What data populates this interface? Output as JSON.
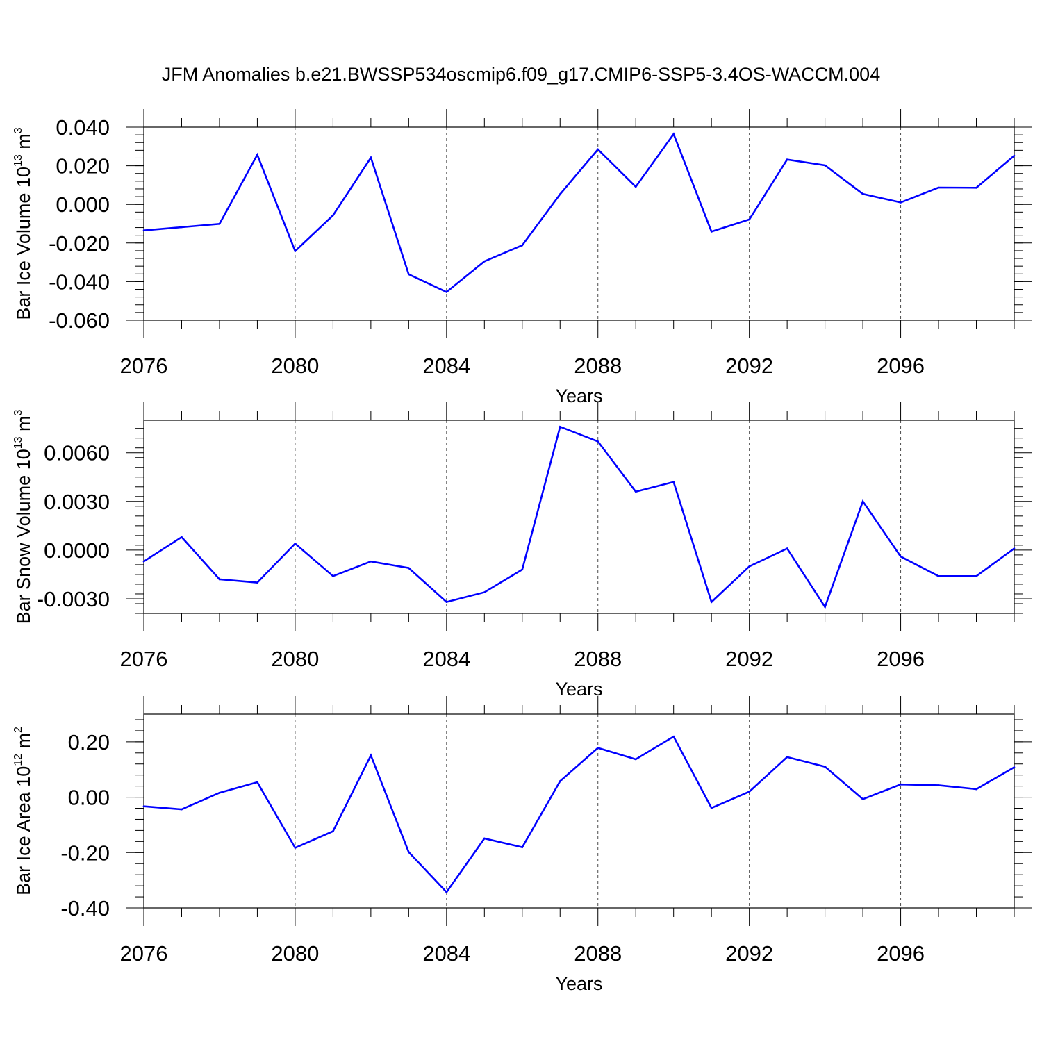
{
  "title": "JFM Anomalies b.e21.BWSSP534oscmip6.f09_g17.CMIP6-SSP5-3.4OS-WACCM.004",
  "colors": {
    "series": "#0000ff",
    "axes": "#000000",
    "grid": "#000000"
  },
  "chart_data": [
    {
      "type": "line",
      "xlabel": "Years",
      "ylabel": {
        "text": "Bar Ice Volume 10",
        "exp": "13",
        "unit": " m",
        "unit_exp": "3"
      },
      "xlim": [
        2076,
        2099
      ],
      "ylim": [
        -0.06,
        0.04
      ],
      "major_yticks": [
        -0.06,
        -0.04,
        -0.02,
        0.0,
        0.02,
        0.04
      ],
      "ytick_labels": [
        "-0.060",
        "-0.040",
        "-0.020",
        "0.000",
        "0.020",
        "0.040"
      ],
      "minor_ystep": 0.004,
      "xticks": [
        2076,
        2080,
        2084,
        2088,
        2092,
        2096
      ],
      "xtick_labels": [
        "2076",
        "2080",
        "2084",
        "2088",
        "2092",
        "2096"
      ],
      "x_gridlines": [
        2080,
        2084,
        2088,
        2092,
        2096
      ],
      "x": [
        2076,
        2077,
        2078,
        2079,
        2080,
        2081,
        2082,
        2083,
        2084,
        2085,
        2086,
        2087,
        2088,
        2089,
        2090,
        2091,
        2092,
        2093,
        2094,
        2095,
        2096,
        2097,
        2098,
        2099
      ],
      "y": [
        -0.0135,
        -0.0118,
        -0.0101,
        0.0257,
        -0.0242,
        -0.0057,
        0.0242,
        -0.0362,
        -0.0454,
        -0.0295,
        -0.0212,
        0.0053,
        0.0285,
        0.0091,
        0.0364,
        -0.0141,
        -0.0078,
        0.0232,
        0.0202,
        0.0054,
        0.001,
        0.0087,
        0.0086,
        0.0252
      ]
    },
    {
      "type": "line",
      "xlabel": "Years",
      "ylabel": {
        "text": "Bar Snow Volume 10",
        "exp": "13",
        "unit": " m",
        "unit_exp": "3"
      },
      "xlim": [
        2076,
        2099
      ],
      "ylim": [
        -0.0039,
        0.008
      ],
      "major_yticks": [
        -0.003,
        0.0,
        0.003,
        0.006
      ],
      "ytick_labels": [
        "-0.0030",
        "0.0000",
        "0.0030",
        "0.0060"
      ],
      "minor_ystep": 0.0006,
      "xticks": [
        2076,
        2080,
        2084,
        2088,
        2092,
        2096
      ],
      "xtick_labels": [
        "2076",
        "2080",
        "2084",
        "2088",
        "2092",
        "2096"
      ],
      "x_gridlines": [
        2080,
        2084,
        2088,
        2092,
        2096
      ],
      "x": [
        2076,
        2077,
        2078,
        2079,
        2080,
        2081,
        2082,
        2083,
        2084,
        2085,
        2086,
        2087,
        2088,
        2089,
        2090,
        2091,
        2092,
        2093,
        2094,
        2095,
        2096,
        2097,
        2098,
        2099
      ],
      "y": [
        -0.0007,
        0.0008,
        -0.0018,
        -0.002,
        0.0004,
        -0.0016,
        -0.0007,
        -0.0011,
        -0.0032,
        -0.0026,
        -0.0012,
        0.0076,
        0.0067,
        0.0036,
        0.0042,
        -0.0032,
        -0.001,
        0.0001,
        -0.0035,
        0.003,
        -0.0004,
        -0.0016,
        -0.0016,
        0.0001
      ]
    },
    {
      "type": "line",
      "xlabel": "Years",
      "ylabel": {
        "text": "Bar Ice Area 10",
        "exp": "12",
        "unit": " m",
        "unit_exp": "2"
      },
      "xlim": [
        2076,
        2099
      ],
      "ylim": [
        -0.4,
        0.3
      ],
      "major_yticks": [
        -0.4,
        -0.2,
        0.0,
        0.2
      ],
      "ytick_labels": [
        "-0.40",
        "-0.20",
        "0.00",
        "0.20"
      ],
      "minor_ystep": 0.04,
      "xticks": [
        2076,
        2080,
        2084,
        2088,
        2092,
        2096
      ],
      "xtick_labels": [
        "2076",
        "2080",
        "2084",
        "2088",
        "2092",
        "2096"
      ],
      "x_gridlines": [
        2080,
        2084,
        2088,
        2092,
        2096
      ],
      "x": [
        2076,
        2077,
        2078,
        2079,
        2080,
        2081,
        2082,
        2083,
        2084,
        2085,
        2086,
        2087,
        2088,
        2089,
        2090,
        2091,
        2092,
        2093,
        2094,
        2095,
        2096,
        2097,
        2098,
        2099
      ],
      "y": [
        -0.033,
        -0.044,
        0.016,
        0.054,
        -0.183,
        -0.123,
        0.151,
        -0.198,
        -0.343,
        -0.149,
        -0.181,
        0.058,
        0.178,
        0.137,
        0.219,
        -0.039,
        0.02,
        0.145,
        0.11,
        -0.007,
        0.046,
        0.043,
        0.029,
        0.108
      ]
    }
  ]
}
